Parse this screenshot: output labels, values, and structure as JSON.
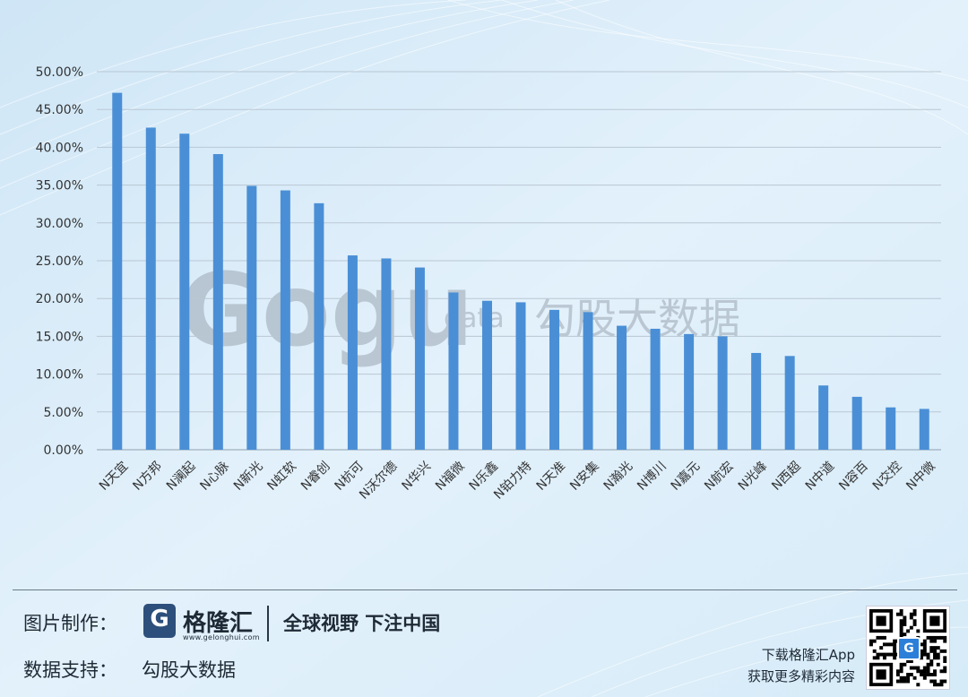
{
  "chart_data": {
    "type": "bar",
    "title": "",
    "xlabel": "",
    "ylabel": "",
    "ylim": [
      0,
      50
    ],
    "yticks": [
      0,
      5,
      10,
      15,
      20,
      25,
      30,
      35,
      40,
      45,
      50
    ],
    "ytick_labels": [
      "0.00%",
      "5.00%",
      "10.00%",
      "15.00%",
      "20.00%",
      "25.00%",
      "30.00%",
      "35.00%",
      "40.00%",
      "45.00%",
      "50.00%"
    ],
    "grid": true,
    "bar_color": "#4a8fd6",
    "categories": [
      "N天宜",
      "N方邦",
      "N澜起",
      "N心脉",
      "N新光",
      "N虹软",
      "N睿创",
      "N杭可",
      "N沃尔德",
      "N华兴",
      "N福微",
      "N乐鑫",
      "N铂力特",
      "N天准",
      "N安集",
      "N瀚光",
      "N博川",
      "N嘉元",
      "N航宏",
      "N光峰",
      "N西超",
      "N中道",
      "N容百",
      "N交控",
      "N中微"
    ],
    "values": [
      47.2,
      42.6,
      41.8,
      39.1,
      34.9,
      34.3,
      32.6,
      25.7,
      25.3,
      24.1,
      20.8,
      19.7,
      19.5,
      18.5,
      18.2,
      16.4,
      16.0,
      15.3,
      15.0,
      12.8,
      12.4,
      8.5,
      7.0,
      5.6,
      5.4
    ]
  },
  "watermark": {
    "logo_text": "Gogu",
    "sub_text": "data",
    "cn_text": "勾股大数据"
  },
  "footer": {
    "made_by_label": "图片制作：",
    "brand_logo_letter": "G",
    "brand_name": "格隆汇",
    "brand_url": "www.gelonghui.com",
    "slogan": "全球视野 下注中国",
    "data_label": "数据支持：",
    "data_source": "勾股大数据",
    "app_line1": "下载格隆汇App",
    "app_line2": "获取更多精彩内容",
    "qr_badge": "G"
  },
  "colors": {
    "accent": "#4a8fd6",
    "brand": "#2d4f7b",
    "grid": "#b9c7d3"
  }
}
